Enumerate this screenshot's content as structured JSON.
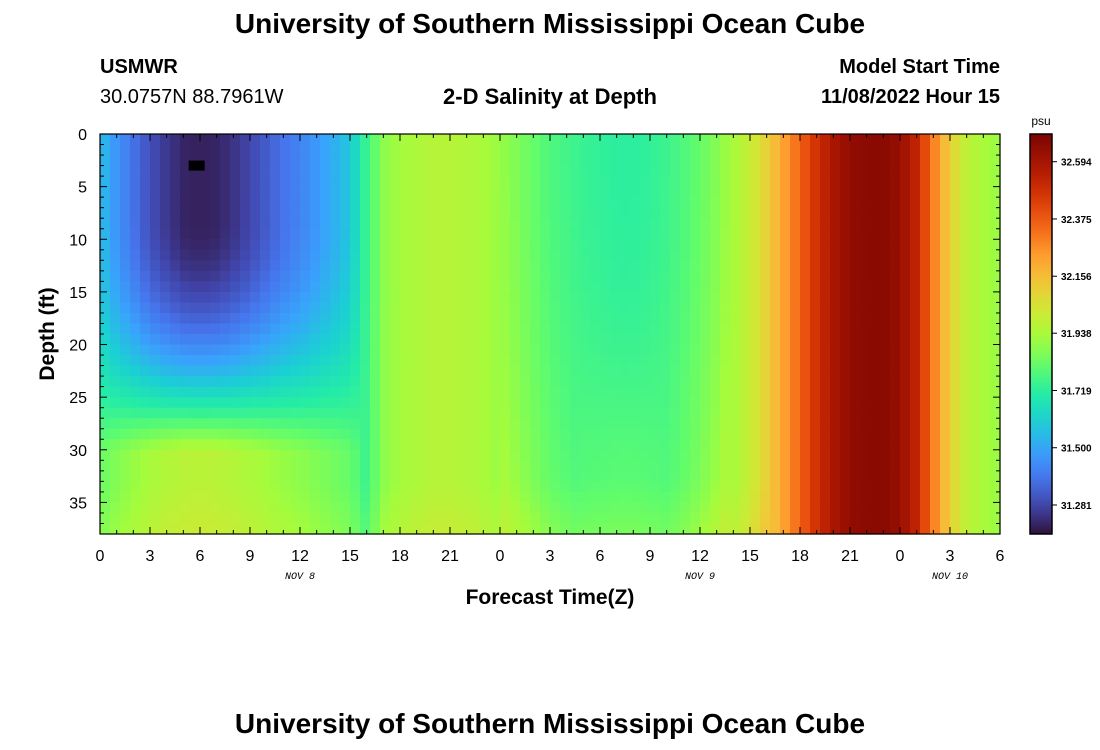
{
  "header": {
    "title": "University of Southern Mississippi Ocean Cube",
    "station": "USMWR",
    "coords": "30.0757N  88.7961W",
    "subtitle": "2-D Salinity at Depth",
    "model_label": "Model Start Time",
    "model_time": "11/08/2022 Hour 15"
  },
  "footer": {
    "title": "University of Southern Mississippi Ocean Cube"
  },
  "colors": {
    "min": "#30123b",
    "max": "#7a0403",
    "marker": "#000000"
  },
  "chart_data": {
    "type": "heatmap",
    "title": "2-D Salinity at Depth",
    "xlabel": "Forecast Time(Z)",
    "ylabel": "Depth (ft)",
    "units": "psu",
    "x_hours_range": [
      0,
      54
    ],
    "ylim": [
      0,
      38
    ],
    "y_inverted": true,
    "x_ticks": [
      "0",
      "3",
      "6",
      "9",
      "12",
      "15",
      "18",
      "21",
      "0",
      "3",
      "6",
      "9",
      "12",
      "15",
      "18",
      "21",
      "0",
      "3",
      "6"
    ],
    "y_ticks": [
      0,
      5,
      10,
      15,
      20,
      25,
      30,
      35
    ],
    "date_labels": [
      {
        "label": "NOV 8",
        "hour": 12
      },
      {
        "label": "NOV 9",
        "hour": 36
      },
      {
        "label": "NOV 10",
        "hour": 51
      }
    ],
    "colorbar": {
      "min": 31.17,
      "max": 32.7,
      "ticks": [
        "32.594",
        "32.375",
        "32.156",
        "31.938",
        "31.719",
        "31.500",
        "31.281"
      ],
      "tick_values": [
        32.594,
        32.375,
        32.156,
        31.938,
        31.719,
        31.5,
        31.281
      ]
    },
    "colormap": "turbo",
    "surface_salinity_by_hour": [
      [
        0,
        31.56
      ],
      [
        1,
        31.46
      ],
      [
        2,
        31.38
      ],
      [
        3,
        31.3
      ],
      [
        4,
        31.25
      ],
      [
        5,
        31.21
      ],
      [
        6,
        31.2
      ],
      [
        7,
        31.21
      ],
      [
        8,
        31.24
      ],
      [
        9,
        31.28
      ],
      [
        10,
        31.33
      ],
      [
        11,
        31.38
      ],
      [
        12,
        31.42
      ],
      [
        13,
        31.47
      ],
      [
        14,
        31.52
      ],
      [
        15,
        31.58
      ],
      [
        16,
        31.75
      ],
      [
        17,
        31.88
      ],
      [
        18,
        31.92
      ],
      [
        19,
        31.94
      ],
      [
        20,
        31.96
      ],
      [
        21,
        31.96
      ],
      [
        22,
        31.95
      ],
      [
        23,
        31.93
      ],
      [
        24,
        31.9
      ],
      [
        25,
        31.86
      ],
      [
        26,
        31.82
      ],
      [
        27,
        31.78
      ],
      [
        28,
        31.76
      ],
      [
        29,
        31.74
      ],
      [
        30,
        31.73
      ],
      [
        31,
        31.72
      ],
      [
        32,
        31.72
      ],
      [
        33,
        31.73
      ],
      [
        34,
        31.75
      ],
      [
        35,
        31.78
      ],
      [
        36,
        31.82
      ],
      [
        37,
        31.87
      ],
      [
        38,
        31.93
      ],
      [
        39,
        32.0
      ],
      [
        40,
        32.1
      ],
      [
        41,
        32.22
      ],
      [
        42,
        32.35
      ],
      [
        43,
        32.48
      ],
      [
        44,
        32.58
      ],
      [
        45,
        32.64
      ],
      [
        46,
        32.66
      ],
      [
        47,
        32.66
      ],
      [
        48,
        32.63
      ],
      [
        49,
        32.52
      ],
      [
        50,
        32.3
      ],
      [
        51,
        32.1
      ],
      [
        52,
        31.98
      ],
      [
        53,
        31.93
      ],
      [
        54,
        31.9
      ]
    ],
    "marker": {
      "hour": 5.8,
      "depth_ft": 3
    }
  }
}
